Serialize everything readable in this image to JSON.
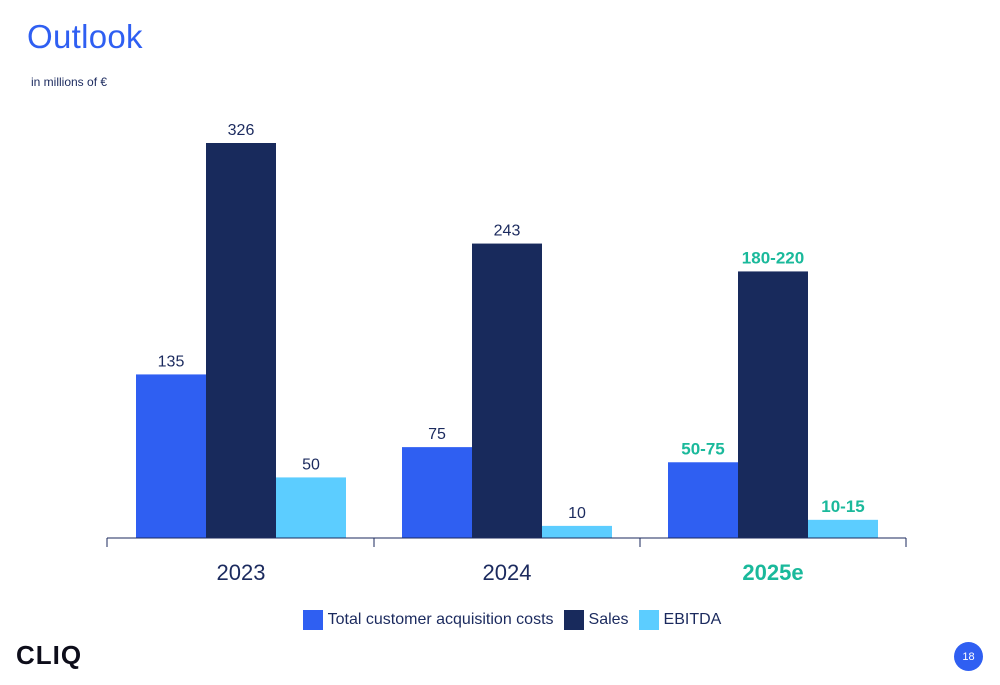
{
  "header": {
    "title": "Outlook",
    "subtitle": "in millions of €"
  },
  "chart_data": {
    "type": "bar",
    "categories": [
      "2023",
      "2024",
      "2025e"
    ],
    "highlight_category": "2025e",
    "series": [
      {
        "name": "Total customer acquisition costs",
        "color": "#2f5ff2",
        "values": [
          135,
          75,
          62.5
        ],
        "labels": [
          "135",
          "75",
          "50-75"
        ]
      },
      {
        "name": "Sales",
        "color": "#182a5c",
        "values": [
          326,
          243,
          220
        ],
        "labels": [
          "326",
          "243",
          "180-220"
        ]
      },
      {
        "name": "EBITDA",
        "color": "#5ccdff",
        "values": [
          50,
          10,
          15
        ],
        "labels": [
          "50",
          "10",
          "10-15"
        ]
      }
    ],
    "colors": {
      "text": "#1b2a5e",
      "highlight": "#1ab99b",
      "axis": "#1b2a5e"
    },
    "grid": false,
    "legend_position": "bottom-center"
  },
  "footer": {
    "logo": "CLIQ",
    "page_number": "18"
  }
}
